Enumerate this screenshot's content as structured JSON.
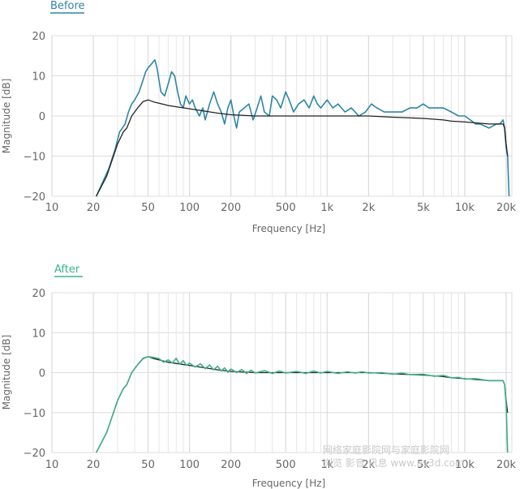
{
  "chart_data": [
    {
      "type": "line",
      "title": "Before",
      "xlabel": "Frequency [Hz]",
      "ylabel": "Magnitude [dB]",
      "xscale": "log",
      "xlim": [
        10,
        22000
      ],
      "ylim": [
        -20,
        20
      ],
      "grid": true,
      "title_color": "#2e86a4",
      "x_tick_labels": [
        "10",
        "20",
        "50",
        "100",
        "200",
        "500",
        "1k",
        "2k",
        "5k",
        "10k",
        "20k"
      ],
      "x_ticks": [
        10,
        20,
        50,
        100,
        200,
        500,
        1000,
        2000,
        5000,
        10000,
        20000
      ],
      "y_tick_labels": [
        "20",
        "10",
        "0",
        "−10",
        "−20"
      ],
      "y_ticks": [
        20,
        10,
        0,
        -10,
        -20
      ],
      "series": [
        {
          "color": "#2e86a4",
          "points": [
            [
              21,
              -20
            ],
            [
              23,
              -17
            ],
            [
              26,
              -13
            ],
            [
              29,
              -8
            ],
            [
              31,
              -4
            ],
            [
              34,
              -2
            ],
            [
              36,
              1
            ],
            [
              38,
              3
            ],
            [
              40,
              4
            ],
            [
              43,
              6
            ],
            [
              46,
              9
            ],
            [
              48,
              11
            ],
            [
              50,
              12
            ],
            [
              53,
              13
            ],
            [
              56,
              14
            ],
            [
              58,
              12
            ],
            [
              62,
              6
            ],
            [
              66,
              5
            ],
            [
              70,
              8
            ],
            [
              74,
              11
            ],
            [
              78,
              10
            ],
            [
              82,
              6
            ],
            [
              86,
              3
            ],
            [
              90,
              2
            ],
            [
              94,
              5
            ],
            [
              100,
              3
            ],
            [
              105,
              4
            ],
            [
              110,
              2
            ],
            [
              118,
              0
            ],
            [
              125,
              2
            ],
            [
              130,
              -1
            ],
            [
              140,
              3
            ],
            [
              150,
              6
            ],
            [
              160,
              3
            ],
            [
              170,
              1
            ],
            [
              180,
              -2
            ],
            [
              190,
              2
            ],
            [
              200,
              4
            ],
            [
              210,
              0
            ],
            [
              220,
              -3
            ],
            [
              230,
              1
            ],
            [
              250,
              2
            ],
            [
              270,
              3
            ],
            [
              290,
              -1
            ],
            [
              310,
              2
            ],
            [
              330,
              5
            ],
            [
              350,
              1
            ],
            [
              380,
              0
            ],
            [
              400,
              5
            ],
            [
              430,
              4
            ],
            [
              460,
              2
            ],
            [
              500,
              6
            ],
            [
              530,
              4
            ],
            [
              570,
              1
            ],
            [
              620,
              3
            ],
            [
              680,
              4
            ],
            [
              740,
              2
            ],
            [
              800,
              5
            ],
            [
              850,
              3
            ],
            [
              900,
              2
            ],
            [
              1000,
              4
            ],
            [
              1100,
              2
            ],
            [
              1200,
              3
            ],
            [
              1350,
              1
            ],
            [
              1500,
              2
            ],
            [
              1700,
              0
            ],
            [
              1900,
              1
            ],
            [
              2100,
              3
            ],
            [
              2300,
              2
            ],
            [
              2600,
              1
            ],
            [
              3000,
              1
            ],
            [
              3500,
              1
            ],
            [
              4000,
              2
            ],
            [
              4500,
              2
            ],
            [
              5000,
              3
            ],
            [
              5500,
              2
            ],
            [
              6000,
              2
            ],
            [
              7000,
              2
            ],
            [
              8000,
              1
            ],
            [
              9000,
              0
            ],
            [
              10000,
              0
            ],
            [
              11000,
              -1
            ],
            [
              12000,
              -2
            ],
            [
              13000,
              -2
            ],
            [
              15000,
              -3
            ],
            [
              17000,
              -2
            ],
            [
              18000,
              -2
            ],
            [
              19000,
              -1
            ],
            [
              19500,
              -3
            ],
            [
              20000,
              -8
            ],
            [
              20500,
              -10
            ],
            [
              21000,
              -20
            ]
          ]
        },
        {
          "color": "#222222",
          "points": [
            [
              21,
              -20
            ],
            [
              25,
              -15
            ],
            [
              28,
              -10
            ],
            [
              30,
              -7
            ],
            [
              33,
              -4
            ],
            [
              35,
              -3
            ],
            [
              38,
              0
            ],
            [
              42,
              2
            ],
            [
              46,
              3.6
            ],
            [
              50,
              4
            ],
            [
              55,
              3.5
            ],
            [
              60,
              3.2
            ],
            [
              70,
              2.6
            ],
            [
              80,
              2.3
            ],
            [
              100,
              1.8
            ],
            [
              130,
              1.2
            ],
            [
              160,
              0.7
            ],
            [
              200,
              0.3
            ],
            [
              300,
              0
            ],
            [
              500,
              0
            ],
            [
              1000,
              0
            ],
            [
              1500,
              0
            ],
            [
              2000,
              0
            ],
            [
              3000,
              -0.3
            ],
            [
              5000,
              -0.6
            ],
            [
              7000,
              -1
            ],
            [
              8000,
              -1.3
            ],
            [
              10000,
              -1.5
            ],
            [
              15000,
              -2
            ],
            [
              19000,
              -2
            ],
            [
              19500,
              -3
            ],
            [
              20000,
              -7
            ],
            [
              20500,
              -10
            ]
          ]
        }
      ]
    },
    {
      "type": "line",
      "title": "After",
      "xlabel": "Frequency [Hz]",
      "ylabel": "Magnitude [dB]",
      "xscale": "log",
      "xlim": [
        10,
        22000
      ],
      "ylim": [
        -20,
        20
      ],
      "grid": true,
      "title_color": "#3bb58a",
      "x_tick_labels": [
        "10",
        "20",
        "50",
        "100",
        "200",
        "500",
        "1k",
        "2k",
        "5k",
        "10k",
        "20k"
      ],
      "x_ticks": [
        10,
        20,
        50,
        100,
        200,
        500,
        1000,
        2000,
        5000,
        10000,
        20000
      ],
      "y_tick_labels": [
        "20",
        "10",
        "0",
        "−10",
        "−20"
      ],
      "y_ticks": [
        20,
        10,
        0,
        -10,
        -20
      ],
      "series": [
        {
          "color": "#222222",
          "points": [
            [
              21,
              -20
            ],
            [
              25,
              -15
            ],
            [
              28,
              -10
            ],
            [
              30,
              -7
            ],
            [
              33,
              -4
            ],
            [
              35,
              -3
            ],
            [
              38,
              0
            ],
            [
              42,
              2
            ],
            [
              46,
              3.6
            ],
            [
              50,
              4
            ],
            [
              55,
              3.5
            ],
            [
              60,
              3.2
            ],
            [
              70,
              2.6
            ],
            [
              80,
              2.3
            ],
            [
              100,
              1.8
            ],
            [
              130,
              1.2
            ],
            [
              160,
              0.7
            ],
            [
              200,
              0.3
            ],
            [
              300,
              0
            ],
            [
              500,
              0
            ],
            [
              1000,
              0
            ],
            [
              1500,
              0
            ],
            [
              2000,
              0
            ],
            [
              3000,
              -0.3
            ],
            [
              5000,
              -0.6
            ],
            [
              7000,
              -1
            ],
            [
              8000,
              -1.3
            ],
            [
              10000,
              -1.5
            ],
            [
              15000,
              -2
            ],
            [
              19000,
              -2
            ],
            [
              19500,
              -3
            ],
            [
              20000,
              -7
            ],
            [
              20500,
              -10
            ]
          ]
        },
        {
          "color": "#3fae86",
          "points": [
            [
              21,
              -20
            ],
            [
              25,
              -15
            ],
            [
              28,
              -10
            ],
            [
              30,
              -7
            ],
            [
              33,
              -4
            ],
            [
              35,
              -3
            ],
            [
              38,
              0
            ],
            [
              42,
              2
            ],
            [
              46,
              3.5
            ],
            [
              50,
              4
            ],
            [
              55,
              3.8
            ],
            [
              60,
              3.5
            ],
            [
              65,
              2.6
            ],
            [
              70,
              3.2
            ],
            [
              75,
              2.4
            ],
            [
              80,
              3.6
            ],
            [
              85,
              2.1
            ],
            [
              90,
              3
            ],
            [
              95,
              1.8
            ],
            [
              100,
              2.4
            ],
            [
              110,
              1.4
            ],
            [
              120,
              2.2
            ],
            [
              130,
              1
            ],
            [
              140,
              1.9
            ],
            [
              150,
              0.7
            ],
            [
              160,
              1.6
            ],
            [
              170,
              0.4
            ],
            [
              180,
              1.2
            ],
            [
              190,
              0.1
            ],
            [
              200,
              0.9
            ],
            [
              220,
              0
            ],
            [
              240,
              0.8
            ],
            [
              260,
              -0.2
            ],
            [
              280,
              0.6
            ],
            [
              300,
              -0.1
            ],
            [
              350,
              0.5
            ],
            [
              400,
              -0.2
            ],
            [
              450,
              0.4
            ],
            [
              500,
              -0.1
            ],
            [
              600,
              0.3
            ],
            [
              700,
              -0.2
            ],
            [
              800,
              0.4
            ],
            [
              900,
              -0.1
            ],
            [
              1000,
              0.3
            ],
            [
              1200,
              -0.2
            ],
            [
              1400,
              0.2
            ],
            [
              1600,
              -0.1
            ],
            [
              1800,
              0.2
            ],
            [
              2000,
              -0.1
            ],
            [
              2500,
              0
            ],
            [
              3000,
              -0.4
            ],
            [
              3500,
              -0.1
            ],
            [
              4000,
              -0.5
            ],
            [
              5000,
              -0.4
            ],
            [
              6000,
              -0.9
            ],
            [
              7000,
              -0.7
            ],
            [
              8000,
              -1.3
            ],
            [
              9000,
              -1.2
            ],
            [
              10000,
              -1.6
            ],
            [
              12000,
              -1.5
            ],
            [
              15000,
              -2
            ],
            [
              19000,
              -2
            ],
            [
              19500,
              -3
            ],
            [
              20000,
              -8
            ],
            [
              20500,
              -20
            ]
          ]
        }
      ]
    }
  ],
  "watermark": {
    "line1": "网络家庭影院网与家庭影院网",
    "line2": "浏览 影音 讯息 www.av3d.com"
  }
}
